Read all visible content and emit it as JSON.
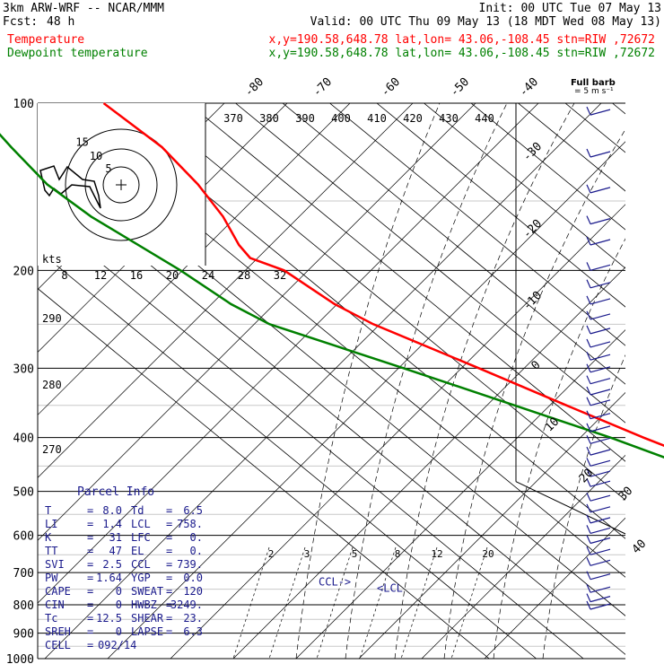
{
  "header": {
    "model": "3km ARW-WRF -- NCAR/MMM",
    "init": "Init: 00 UTC Tue 07 May 13",
    "fcst_label": "Fcst:",
    "fcst_value": "48 h",
    "valid": "Valid: 00 UTC Thu 09 May 13 (18 MDT Wed 08 May 13)",
    "temp_label": "Temperature",
    "temp_info": "x,y=190.58,648.78   lat,lon= 43.06,-108.45   stn=RIW ,72672",
    "dew_label": "Dewpoint temperature",
    "dew_info": "x,y=190.58,648.78   lat,lon= 43.06,-108.45   stn=RIW ,72672",
    "barb_title": "Full barb",
    "barb_unit": "= 5 m s⁻¹"
  },
  "colors": {
    "temperature": "#ff0000",
    "dewpoint": "#008000",
    "parcel": "#1a1a8c",
    "grid": "#000000"
  },
  "chart_data": {
    "type": "line",
    "title": "",
    "y_axis": "pressure (hPa), log scale",
    "pressure_levels": [
      100,
      200,
      300,
      400,
      500,
      600,
      700,
      800,
      900,
      1000
    ],
    "isotherm_labels": [
      -80,
      -70,
      -60,
      -50,
      -40,
      -30,
      -20,
      -10,
      0,
      10,
      20,
      30,
      40
    ],
    "mixing_ratio_labels": [
      2,
      3,
      5,
      8,
      12,
      20
    ],
    "hodograph": {
      "speed_unit": "kts",
      "ring_labels": [
        5,
        10,
        15
      ],
      "speed_axis_labels": [
        8,
        12,
        16,
        20,
        24,
        28,
        32
      ]
    },
    "theta_labels": [
      370,
      380,
      390,
      400,
      410,
      420,
      430,
      440
    ],
    "theta_side_labels": [
      290,
      280,
      270
    ],
    "series": [
      {
        "name": "Temperature",
        "color": "#ff0000",
        "x_label": "temperature (C)",
        "points": [
          {
            "p": 100,
            "t": -58
          },
          {
            "p": 120,
            "t": -57
          },
          {
            "p": 140,
            "t": -59
          },
          {
            "p": 160,
            "t": -62
          },
          {
            "p": 180,
            "t": -66
          },
          {
            "p": 190,
            "t": -67
          },
          {
            "p": 200,
            "t": -63
          },
          {
            "p": 230,
            "t": -61
          },
          {
            "p": 250,
            "t": -58
          },
          {
            "p": 300,
            "t": -47
          },
          {
            "p": 350,
            "t": -38
          },
          {
            "p": 400,
            "t": -30
          },
          {
            "p": 450,
            "t": -22
          },
          {
            "p": 500,
            "t": -16
          },
          {
            "p": 550,
            "t": -10
          },
          {
            "p": 600,
            "t": -6
          },
          {
            "p": 650,
            "t": -2
          },
          {
            "p": 700,
            "t": 2
          },
          {
            "p": 750,
            "t": 5.5
          },
          {
            "p": 780,
            "t": 7.5
          },
          {
            "p": 800,
            "t": 8.0
          },
          {
            "p": 815,
            "t": 6.5
          }
        ]
      },
      {
        "name": "Dewpoint temperature",
        "color": "#008000",
        "x_label": "dewpoint (C)",
        "points": [
          {
            "p": 100,
            "t": -86
          },
          {
            "p": 120,
            "t": -89
          },
          {
            "p": 140,
            "t": -91
          },
          {
            "p": 160,
            "t": -90
          },
          {
            "p": 200,
            "t": -85
          },
          {
            "p": 230,
            "t": -83
          },
          {
            "p": 250,
            "t": -80
          },
          {
            "p": 300,
            "t": -63
          },
          {
            "p": 350,
            "t": -49
          },
          {
            "p": 400,
            "t": -37
          },
          {
            "p": 450,
            "t": -28
          },
          {
            "p": 500,
            "t": -20
          },
          {
            "p": 550,
            "t": -15
          },
          {
            "p": 600,
            "t": -13
          },
          {
            "p": 650,
            "t": -6
          },
          {
            "p": 700,
            "t": 0
          },
          {
            "p": 750,
            "t": 1
          },
          {
            "p": 800,
            "t": 0.5
          },
          {
            "p": 815,
            "t": 1
          }
        ]
      }
    ],
    "annotations": [
      {
        "text": "CCL",
        "p": 739
      },
      {
        "text": "<LCL",
        "p": 758
      }
    ],
    "wind_barbs": [
      {
        "p": 105
      },
      {
        "p": 125
      },
      {
        "p": 145
      },
      {
        "p": 165
      },
      {
        "p": 180
      },
      {
        "p": 200
      },
      {
        "p": 215
      },
      {
        "p": 230
      },
      {
        "p": 245
      },
      {
        "p": 260
      },
      {
        "p": 275
      },
      {
        "p": 290
      },
      {
        "p": 305
      },
      {
        "p": 320
      },
      {
        "p": 335
      },
      {
        "p": 350
      },
      {
        "p": 370
      },
      {
        "p": 390
      },
      {
        "p": 410
      },
      {
        "p": 430
      },
      {
        "p": 450
      },
      {
        "p": 470
      },
      {
        "p": 490
      },
      {
        "p": 520
      },
      {
        "p": 545
      },
      {
        "p": 570
      },
      {
        "p": 595
      },
      {
        "p": 620
      },
      {
        "p": 650
      },
      {
        "p": 680
      },
      {
        "p": 720
      },
      {
        "p": 760
      },
      {
        "p": 790
      },
      {
        "p": 815
      }
    ]
  },
  "parcel_info": {
    "title": "Parcel Info",
    "rows": [
      {
        "l1": "T",
        "v1": "8.0",
        "l2": "Td",
        "v2": "6.5"
      },
      {
        "l1": "LI",
        "v1": "1.4",
        "l2": "LCL",
        "v2": "758."
      },
      {
        "l1": "K",
        "v1": "31",
        "l2": "LFC",
        "v2": "0."
      },
      {
        "l1": "TT",
        "v1": "47",
        "l2": "EL",
        "v2": "0."
      },
      {
        "l1": "SVI",
        "v1": "2.5",
        "l2": "CCL",
        "v2": "739."
      },
      {
        "l1": "PW",
        "v1": "1.64",
        "l2": "YGP",
        "v2": "0.0"
      },
      {
        "l1": "CAPE",
        "v1": "0",
        "l2": "SWEAT",
        "v2": "120"
      },
      {
        "l1": "CIN",
        "v1": "0",
        "l2": "HWBZ",
        "v2": "3249."
      },
      {
        "l1": "Tc",
        "v1": "12.5",
        "l2": "SHEAR",
        "v2": "23."
      },
      {
        "l1": "SREH",
        "v1": "0",
        "l2": "LAPSE",
        "v2": "6.3"
      }
    ],
    "cell_label": "CELL",
    "cell_value": "092/14"
  }
}
